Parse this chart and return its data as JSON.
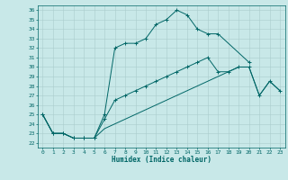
{
  "title": "",
  "xlabel": "Humidex (Indice chaleur)",
  "background_color": "#c8e8e8",
  "line_color": "#006666",
  "grid_color": "#aacccc",
  "xlim": [
    -0.5,
    23.5
  ],
  "ylim": [
    21.5,
    36.5
  ],
  "yticks": [
    22,
    23,
    24,
    25,
    26,
    27,
    28,
    29,
    30,
    31,
    32,
    33,
    34,
    35,
    36
  ],
  "xticks": [
    0,
    1,
    2,
    3,
    4,
    5,
    6,
    7,
    8,
    9,
    10,
    11,
    12,
    13,
    14,
    15,
    16,
    17,
    18,
    19,
    20,
    21,
    22,
    23
  ],
  "line1_x": [
    0,
    1,
    2,
    3,
    4,
    5,
    6,
    7,
    8,
    9,
    10,
    11,
    12,
    13,
    14,
    15,
    16,
    17,
    20
  ],
  "line1_y": [
    25.0,
    23.0,
    23.0,
    22.5,
    22.5,
    22.5,
    25.0,
    32.0,
    32.5,
    32.5,
    33.0,
    34.5,
    35.0,
    36.0,
    35.5,
    34.0,
    33.5,
    33.5,
    30.5
  ],
  "line2_x": [
    0,
    1,
    2,
    3,
    4,
    5,
    6,
    7,
    8,
    9,
    10,
    11,
    12,
    13,
    14,
    15,
    16,
    17,
    18,
    19,
    20,
    21,
    22,
    23
  ],
  "line2_y": [
    25.0,
    23.0,
    23.0,
    22.5,
    22.5,
    22.5,
    24.5,
    26.5,
    27.0,
    27.5,
    28.0,
    28.5,
    29.0,
    29.5,
    30.0,
    30.5,
    31.0,
    29.5,
    29.5,
    30.0,
    30.0,
    27.0,
    28.5,
    27.5
  ],
  "line3_x": [
    0,
    1,
    2,
    3,
    4,
    5,
    6,
    7,
    8,
    9,
    10,
    11,
    12,
    13,
    14,
    15,
    16,
    17,
    18,
    19,
    20,
    21,
    22,
    23
  ],
  "line3_y": [
    25.0,
    23.0,
    23.0,
    22.5,
    22.5,
    22.5,
    23.5,
    24.0,
    24.5,
    25.0,
    25.5,
    26.0,
    26.5,
    27.0,
    27.5,
    28.0,
    28.5,
    29.0,
    29.5,
    30.0,
    30.0,
    27.0,
    28.5,
    27.5
  ]
}
